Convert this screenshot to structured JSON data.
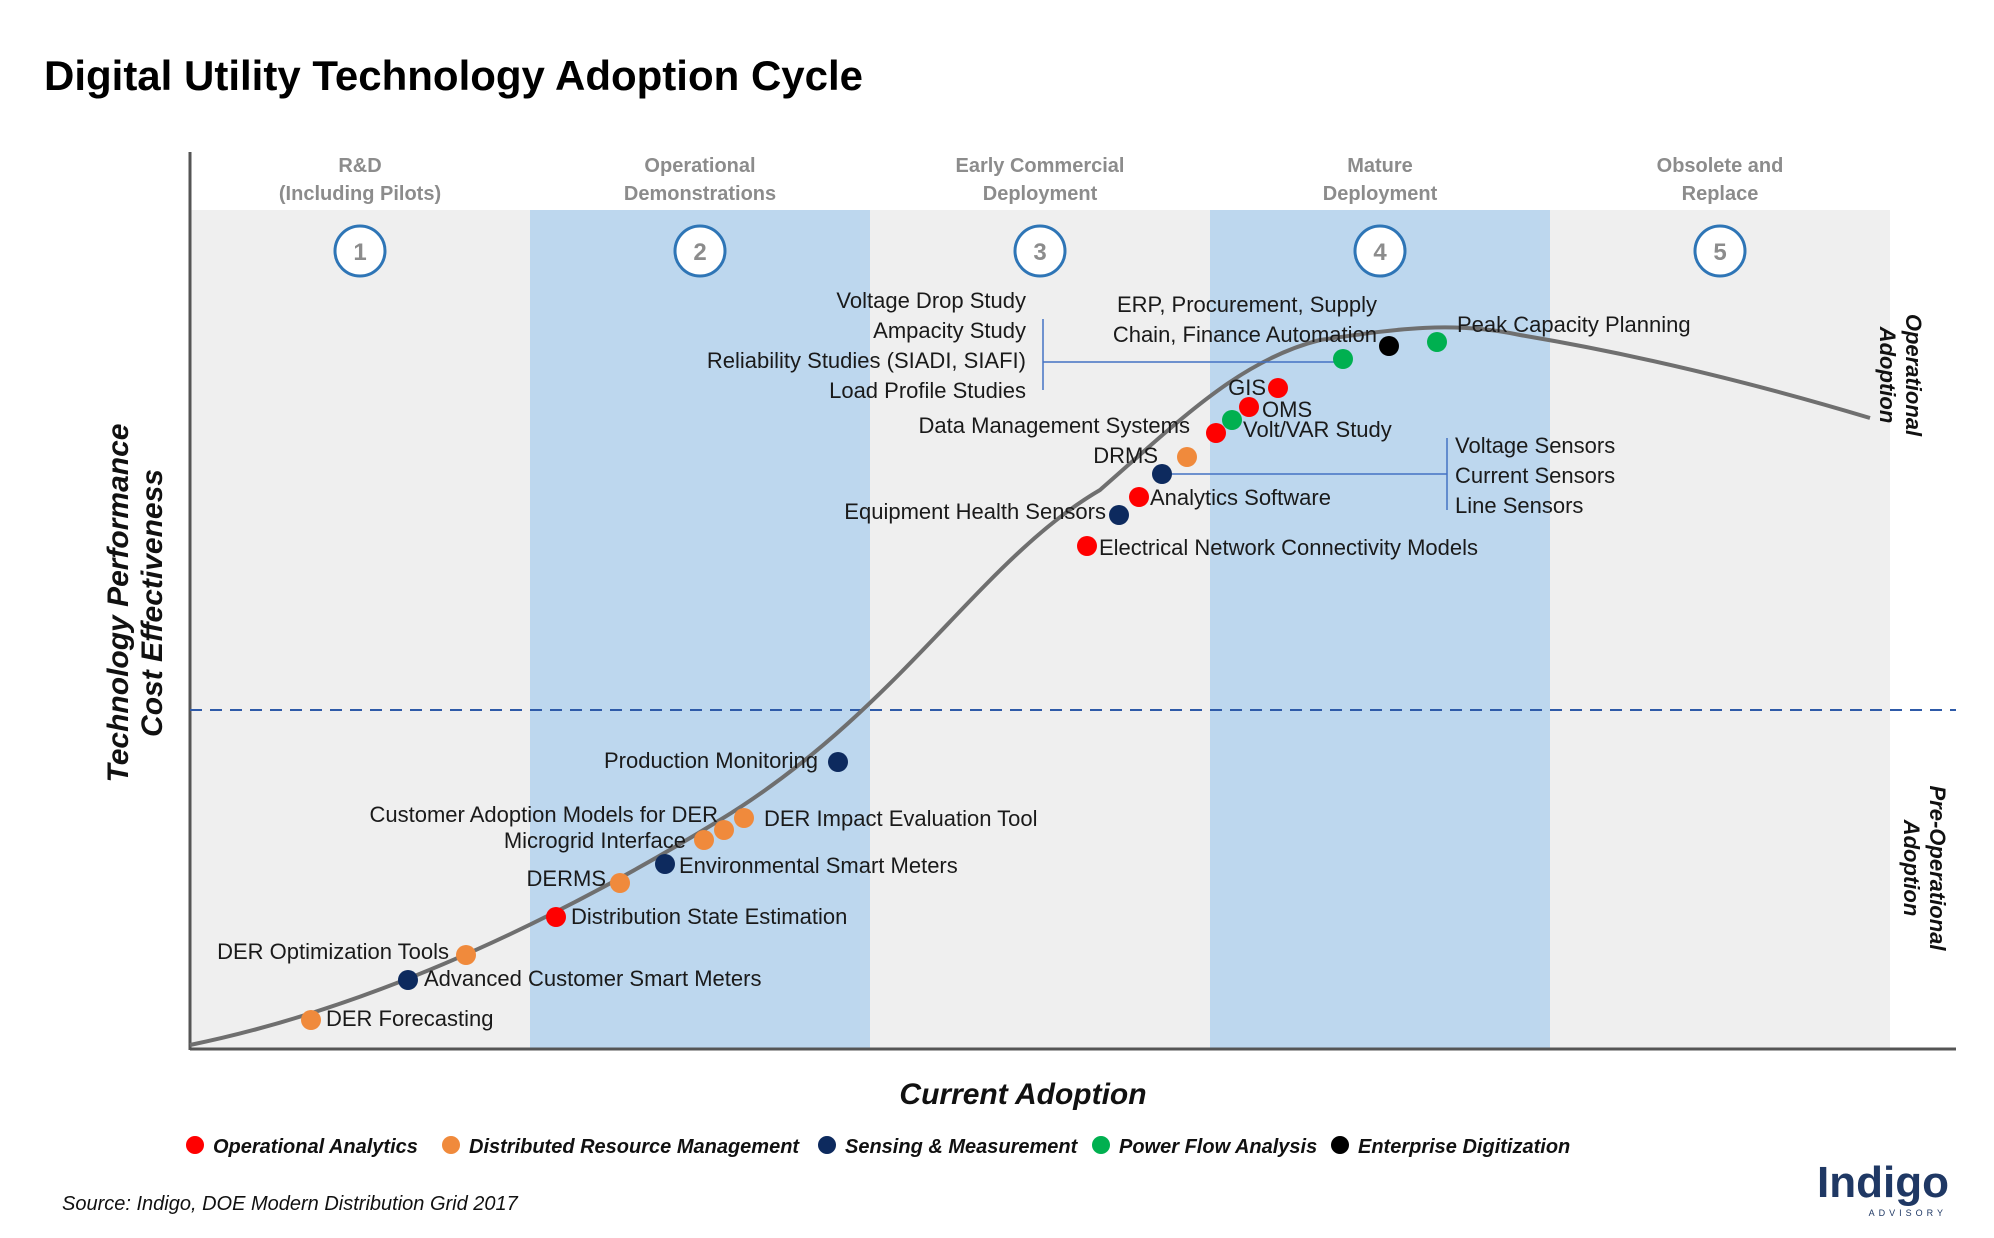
{
  "title": "Digital Utility Technology Adoption Cycle",
  "chart_data": {
    "type": "scatter",
    "x_axis_label": "Current Adoption",
    "y_axis_label_lines": [
      "Technology Performance",
      "Cost Effectiveness"
    ],
    "phases": [
      {
        "number": "1",
        "label_lines": [
          "R&D",
          "(Including Pilots)"
        ]
      },
      {
        "number": "2",
        "label_lines": [
          "Operational",
          "Demonstrations"
        ]
      },
      {
        "number": "3",
        "label_lines": [
          "Early Commercial",
          "Deployment"
        ]
      },
      {
        "number": "4",
        "label_lines": [
          "Mature",
          "Deployment"
        ]
      },
      {
        "number": "5",
        "label_lines": [
          "Obsolete and",
          "Replace"
        ]
      }
    ],
    "regions": {
      "upper": [
        "Operational",
        "Adoption"
      ],
      "lower": [
        "Pre-Operational",
        "Adoption"
      ]
    },
    "categories": [
      {
        "key": "oa",
        "name": "Operational Analytics",
        "color": "#ff0000"
      },
      {
        "key": "drm",
        "name": "Distributed Resource Management",
        "color": "#f08a3c"
      },
      {
        "key": "sm",
        "name": "Sensing & Measurement",
        "color": "#0d2a5e"
      },
      {
        "key": "pfa",
        "name": "Power Flow Analysis",
        "color": "#00b050"
      },
      {
        "key": "ed",
        "name": "Enterprise Digitization",
        "color": "#000000"
      }
    ],
    "points": [
      {
        "label": "DER Forecasting",
        "category": "drm"
      },
      {
        "label": "Advanced Customer Smart Meters",
        "category": "sm"
      },
      {
        "label": "DER Optimization Tools",
        "category": "drm"
      },
      {
        "label": "Distribution State Estimation",
        "category": "oa"
      },
      {
        "label": "DERMS",
        "category": "drm"
      },
      {
        "label": "Environmental Smart Meters",
        "category": "sm"
      },
      {
        "label": "Microgrid Interface",
        "category": "drm"
      },
      {
        "label": "Customer Adoption Models for DER",
        "category": "drm"
      },
      {
        "label": "DER Impact Evaluation Tool",
        "category": "drm"
      },
      {
        "label": "Production Monitoring",
        "category": "sm"
      },
      {
        "label": "Electrical Network Connectivity Models",
        "category": "oa"
      },
      {
        "label": "Equipment Health Sensors",
        "category": "sm"
      },
      {
        "label": "Analytics Software",
        "category": "oa"
      },
      {
        "label": "Voltage Sensors / Current Sensors / Line Sensors",
        "category": "sm"
      },
      {
        "label": "DRMS",
        "category": "drm"
      },
      {
        "label": "Data Management Systems",
        "category": "oa"
      },
      {
        "label": "Volt/VAR Study",
        "category": "pfa"
      },
      {
        "label": "OMS",
        "category": "oa"
      },
      {
        "label": "GIS",
        "category": "oa"
      },
      {
        "label": "Voltage Drop Study / Ampacity Study / Reliability Studies / Load Profile Studies",
        "category": "pfa"
      },
      {
        "label": "ERP, Procurement, Supply Chain, Finance Automation",
        "category": "ed"
      },
      {
        "label": "Peak Capacity Planning",
        "category": "pfa"
      }
    ],
    "annotations": {
      "der_forecasting": "DER Forecasting",
      "adv_meters": "Advanced Customer Smart Meters",
      "der_opt": "DER Optimization Tools",
      "dse": "Distribution State Estimation",
      "derms": "DERMS",
      "env_meters": "Environmental Smart Meters",
      "microgrid": "Microgrid Interface",
      "cust_adoption": "Customer Adoption Models for DER",
      "der_impact": "DER Impact Evaluation Tool",
      "prod_mon": "Production Monitoring",
      "encm": "Electrical Network Connectivity Models",
      "ehs": "Equipment Health Sensors",
      "analytics": "Analytics Software",
      "drms": "DRMS",
      "dms": "Data Management Systems",
      "voltvar": "Volt/VAR Study",
      "oms": "OMS",
      "gis": "GIS",
      "peak": "Peak Capacity Planning",
      "sensors": [
        "Voltage Sensors",
        "Current Sensors",
        "Line Sensors"
      ],
      "studies": [
        "Voltage Drop Study",
        "Ampacity Study",
        "Reliability Studies (SIADI, SIAFI)",
        "Load Profile Studies"
      ],
      "erp": [
        "ERP, Procurement, Supply",
        "Chain, Finance Automation"
      ]
    }
  },
  "source": "Source: Indigo, DOE Modern Distribution Grid 2017",
  "brand": {
    "name": "Indigo",
    "sub": "ADVISORY"
  }
}
